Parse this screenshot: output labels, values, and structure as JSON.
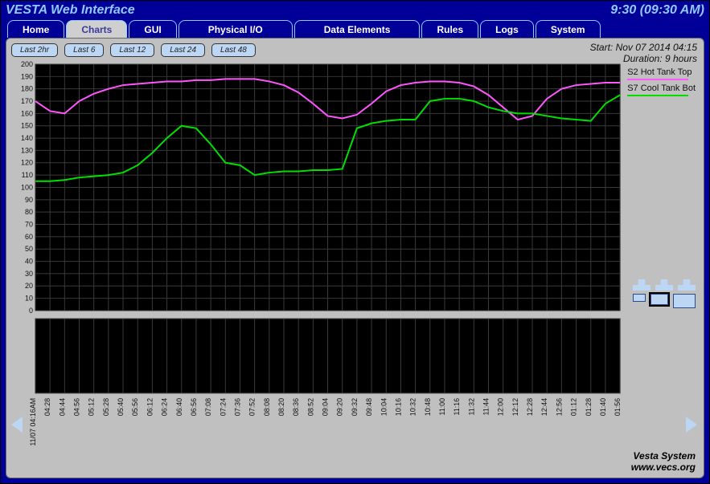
{
  "header": {
    "title": "VESTA Web Interface",
    "clock": "9:30 (09:30 AM)"
  },
  "tabs": [
    {
      "label": "Home",
      "active": false
    },
    {
      "label": "Charts",
      "active": true
    },
    {
      "label": "GUI",
      "active": false
    },
    {
      "label": "Physical I/O",
      "active": false
    },
    {
      "label": "Data Elements",
      "active": false
    },
    {
      "label": "Rules",
      "active": false
    },
    {
      "label": "Logs",
      "active": false
    },
    {
      "label": "System",
      "active": false
    }
  ],
  "range_buttons": [
    "Last 2hr",
    "Last 6",
    "Last 12",
    "Last 24",
    "Last 48"
  ],
  "meta": {
    "start": "Start: Nov 07 2014 04:15",
    "duration": "Duration: 9 hours"
  },
  "chart": {
    "type": "line",
    "plot_bg": "#000000",
    "grid_color": "#3a3a3a",
    "ylim": [
      0,
      200
    ],
    "ytick_step": 10,
    "yticks": [
      0,
      10,
      20,
      30,
      40,
      50,
      60,
      70,
      80,
      90,
      100,
      110,
      120,
      130,
      140,
      150,
      160,
      170,
      180,
      190,
      200
    ],
    "xticks": [
      "11/07 04:16AM",
      "04:28",
      "04:44",
      "04:56",
      "05:12",
      "05:28",
      "05:40",
      "05:56",
      "06:12",
      "06:24",
      "06:40",
      "06:56",
      "07:08",
      "07:24",
      "07:36",
      "07:52",
      "08:08",
      "08:20",
      "08:36",
      "08:52",
      "09:04",
      "09:20",
      "09:32",
      "09:48",
      "10:04",
      "10:16",
      "10:32",
      "10:48",
      "11:00",
      "11:16",
      "11:32",
      "11:44",
      "12:00",
      "12:12",
      "12:28",
      "12:44",
      "12:56",
      "01:12",
      "01:28",
      "01:40",
      "01:56"
    ],
    "xtick_rotation": -90,
    "series": [
      {
        "name": "S2 Hot Tank Top",
        "color": "#ff55ff",
        "line_width": 2,
        "data": [
          170,
          162,
          160,
          170,
          176,
          180,
          183,
          184,
          185,
          186,
          186,
          187,
          187,
          188,
          188,
          188,
          186,
          183,
          177,
          168,
          158,
          156,
          159,
          168,
          178,
          183,
          185,
          186,
          186,
          185,
          182,
          175,
          165,
          155,
          158,
          172,
          180,
          183,
          184,
          185,
          185
        ]
      },
      {
        "name": "S7 Cool Tank Bot",
        "color": "#00e000",
        "line_width": 2,
        "data": [
          105,
          105,
          106,
          108,
          109,
          110,
          112,
          118,
          128,
          140,
          150,
          148,
          135,
          120,
          118,
          110,
          112,
          113,
          113,
          114,
          114,
          115,
          148,
          152,
          154,
          155,
          155,
          170,
          172,
          172,
          170,
          165,
          162,
          160,
          160,
          158,
          156,
          155,
          154,
          168,
          175
        ]
      }
    ],
    "legend_position": "right",
    "lower_panel_height_ratio": 0.22
  },
  "footer": {
    "line1": "Vesta System",
    "line2": "www.vecs.org"
  },
  "colors": {
    "frame_bg": "#000099",
    "panel_bg": "#c0c0c0",
    "tab_active_bg": "#cfcfcf",
    "tab_active_fg": "#3a3aa0",
    "tab_fg": "#ffffff",
    "btn_bg": "#bcd6f4",
    "header_fg": "#8ecbff"
  }
}
